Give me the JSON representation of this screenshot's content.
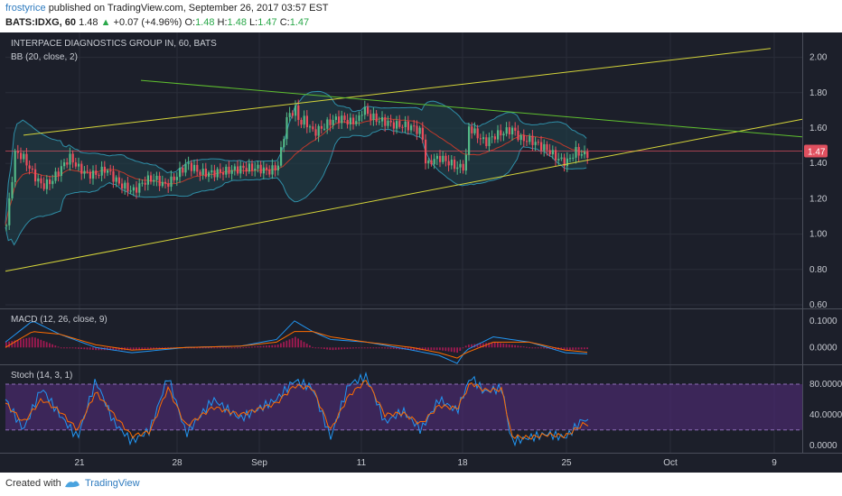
{
  "header": {
    "author": "frostyrice",
    "published": "published on TradingView.com, September 26, 2017 03:57 EST",
    "symbol": "BATS:IDXG, 60",
    "last": "1.48",
    "change": "+0.07 (+4.96%)",
    "o_label": "O:",
    "o_value": "1.48",
    "h_label": "H:",
    "h_value": "1.48",
    "l_label": "L:",
    "l_value": "1.47",
    "c_label": "C:",
    "c_value": "1.47"
  },
  "footer": {
    "created": "Created with",
    "brand": "TradingView"
  },
  "colors": {
    "background": "#1c1f2a",
    "grid": "#2a2e39",
    "candle_up": "#53b987",
    "candle_down": "#eb4d5c",
    "bb_band": "#2f8fa8",
    "bb_basis": "#c0392b",
    "bb_fill": "#1f3f4a",
    "trend_yellow": "#d4d43a",
    "trend_green": "#5fbf2f",
    "macd_line": "#2196f3",
    "signal_line": "#ff6d00",
    "stoch_k": "#2196f3",
    "stoch_d": "#ff6d00",
    "stoch_band": "#4a2a6e",
    "price_badge": "#e0505f"
  },
  "chart_data": [
    {
      "type": "candlestick",
      "title": "INTERPACE DIAGNOSTICS GROUP IN, 60, BATS",
      "indicator": "BB (20, close, 2)",
      "x_ticks": [
        "21",
        "28",
        "Sep",
        "11",
        "18",
        "25",
        "Oct",
        "9"
      ],
      "ylim": [
        0.6,
        2.1
      ],
      "y_ticks": [
        "2.00",
        "1.80",
        "1.60",
        "1.40",
        "1.20",
        "1.00",
        "0.80",
        "0.60"
      ],
      "last_price": "1.47",
      "path_x": [
        0,
        10,
        20,
        30,
        40,
        50,
        60,
        70,
        80,
        90,
        100,
        110,
        125,
        140,
        155,
        165,
        175,
        185,
        200,
        215,
        230,
        245,
        260,
        275,
        290,
        300,
        305,
        310,
        315,
        320,
        325,
        330,
        340,
        350,
        360,
        370,
        380,
        390,
        395,
        400,
        410,
        420,
        430,
        440,
        450,
        460,
        465,
        470,
        480,
        490,
        500,
        508,
        512,
        520,
        530,
        540,
        550,
        560,
        570,
        580,
        590,
        600,
        610,
        620,
        630,
        640,
        650
      ],
      "path_y": [
        1.05,
        1.48,
        1.44,
        1.35,
        1.28,
        1.3,
        1.36,
        1.42,
        1.36,
        1.33,
        1.34,
        1.38,
        1.3,
        1.25,
        1.3,
        1.3,
        1.26,
        1.3,
        1.4,
        1.36,
        1.36,
        1.36,
        1.36,
        1.36,
        1.35,
        1.38,
        1.5,
        1.66,
        1.7,
        1.72,
        1.64,
        1.66,
        1.58,
        1.6,
        1.63,
        1.64,
        1.62,
        1.64,
        1.72,
        1.68,
        1.66,
        1.65,
        1.63,
        1.62,
        1.6,
        1.56,
        1.36,
        1.4,
        1.42,
        1.4,
        1.38,
        1.4,
        1.62,
        1.58,
        1.53,
        1.56,
        1.57,
        1.58,
        1.52,
        1.52,
        1.5,
        1.48,
        1.44,
        1.42,
        1.48,
        1.45,
        1.47
      ]
    },
    {
      "type": "line",
      "title": "MACD (12, 26, close, 9)",
      "ylim": [
        -0.05,
        0.13
      ],
      "y_ticks": [
        "0.1000",
        "0.0000"
      ],
      "series": [
        {
          "key": "macd",
          "x": [
            0,
            30,
            60,
            100,
            140,
            200,
            260,
            300,
            320,
            340,
            360,
            400,
            450,
            480,
            500,
            510,
            540,
            580,
            620,
            650
          ],
          "y": [
            0.02,
            0.1,
            0.05,
            0.0,
            -0.02,
            0.0,
            0.005,
            0.03,
            0.1,
            0.06,
            0.03,
            0.02,
            -0.01,
            -0.03,
            -0.06,
            -0.01,
            0.04,
            0.02,
            -0.02,
            -0.025
          ]
        },
        {
          "key": "signal",
          "x": [
            0,
            30,
            60,
            100,
            140,
            200,
            260,
            300,
            320,
            340,
            360,
            400,
            450,
            480,
            500,
            510,
            540,
            580,
            620,
            650
          ],
          "y": [
            0.0,
            0.06,
            0.05,
            0.01,
            -0.01,
            0.0,
            0.005,
            0.02,
            0.06,
            0.06,
            0.04,
            0.02,
            0.0,
            -0.02,
            -0.04,
            -0.02,
            0.02,
            0.02,
            -0.01,
            -0.02
          ]
        }
      ]
    },
    {
      "type": "line",
      "title": "Stoch (14, 3, 1)",
      "ylim": [
        -5,
        100
      ],
      "y_ticks": [
        "80.0000",
        "40.0000",
        "0.0000"
      ],
      "series": [
        {
          "key": "k",
          "x": [
            0,
            20,
            40,
            60,
            80,
            100,
            120,
            140,
            160,
            180,
            200,
            230,
            260,
            300,
            320,
            340,
            360,
            380,
            400,
            420,
            440,
            460,
            480,
            500,
            515,
            530,
            550,
            560,
            580,
            600,
            620,
            640,
            650
          ],
          "y": [
            60,
            20,
            75,
            40,
            10,
            85,
            30,
            5,
            20,
            90,
            15,
            60,
            35,
            60,
            85,
            75,
            10,
            80,
            90,
            30,
            45,
            20,
            60,
            45,
            90,
            70,
            75,
            5,
            10,
            15,
            10,
            35,
            25
          ]
        },
        {
          "key": "d",
          "x": [
            0,
            20,
            40,
            60,
            80,
            100,
            120,
            140,
            160,
            180,
            200,
            230,
            260,
            300,
            320,
            340,
            360,
            380,
            400,
            420,
            440,
            460,
            480,
            500,
            515,
            530,
            550,
            560,
            580,
            600,
            620,
            640,
            650
          ],
          "y": [
            55,
            30,
            60,
            45,
            20,
            70,
            40,
            12,
            18,
            75,
            25,
            50,
            40,
            55,
            78,
            75,
            20,
            65,
            85,
            40,
            42,
            28,
            52,
            48,
            82,
            72,
            73,
            12,
            10,
            14,
            12,
            28,
            27
          ]
        }
      ]
    }
  ]
}
